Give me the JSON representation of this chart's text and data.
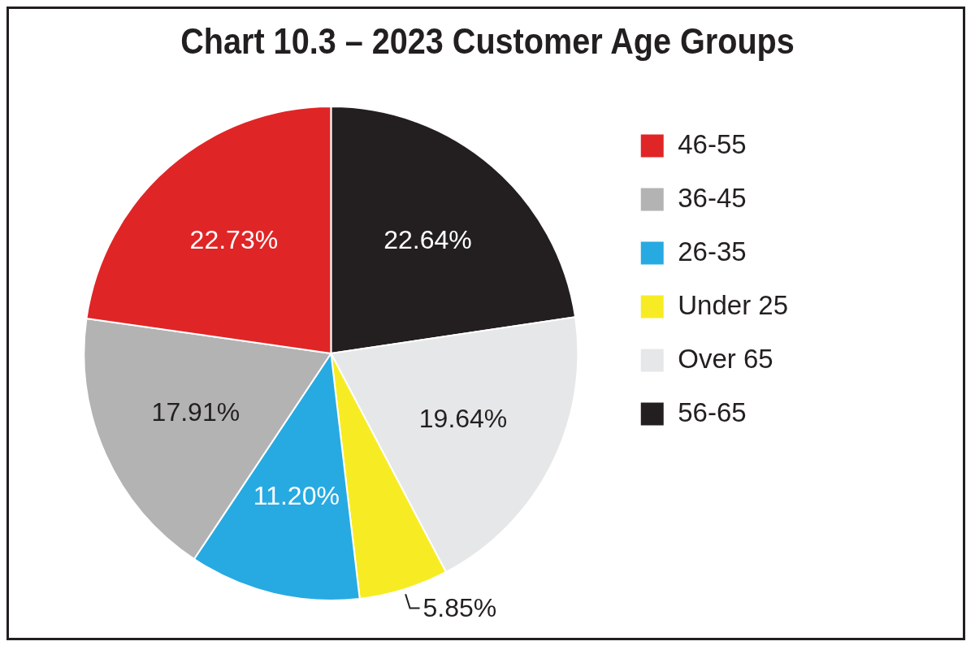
{
  "chart_data": {
    "type": "pie",
    "title": "Chart 10.3 – 2023 Customer Age Groups",
    "categories": [
      "56-65",
      "Over 65",
      "Under 25",
      "26-35",
      "36-45",
      "46-55"
    ],
    "values": [
      22.64,
      19.64,
      5.85,
      11.2,
      17.91,
      22.73
    ],
    "colors": [
      "#231f20",
      "#e6e7e8",
      "#f7ec23",
      "#27aae1",
      "#b3b3b3",
      "#e02526"
    ],
    "value_labels": [
      "22.64%",
      "19.64%",
      "5.85%",
      "11.20%",
      "17.91%",
      "22.73%"
    ],
    "legend": "right"
  }
}
